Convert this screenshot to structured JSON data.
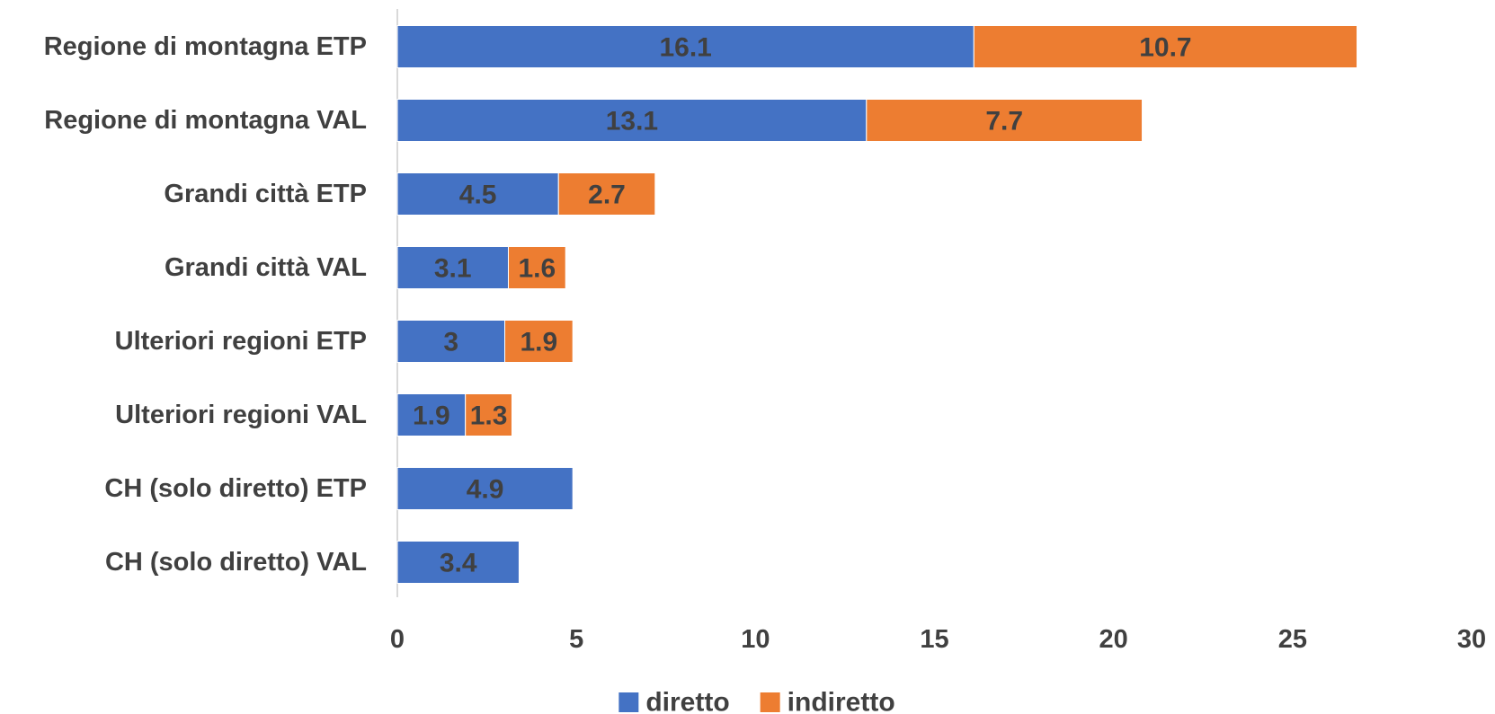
{
  "chart_data": {
    "type": "bar",
    "orientation": "horizontal",
    "stacked": true,
    "categories": [
      "Regione di montagna ETP",
      "Regione di montagna VAL",
      "Grandi città ETP",
      "Grandi città VAL",
      "Ulteriori regioni ETP",
      "Ulteriori regioni VAL",
      "CH (solo diretto) ETP",
      "CH (solo diretto) VAL"
    ],
    "series": [
      {
        "name": "diretto",
        "color": "#4472C4",
        "values": [
          16.1,
          13.1,
          4.5,
          3.1,
          3,
          1.9,
          4.9,
          3.4
        ]
      },
      {
        "name": "indiretto",
        "color": "#ED7D31",
        "values": [
          10.7,
          7.7,
          2.7,
          1.6,
          1.9,
          1.3,
          null,
          null
        ]
      }
    ],
    "xlim": [
      0,
      30
    ],
    "xticks": [
      0,
      5,
      10,
      15,
      20,
      25,
      30
    ],
    "grid": false,
    "legend": "bottom",
    "title": "",
    "xlabel": "",
    "ylabel": ""
  }
}
